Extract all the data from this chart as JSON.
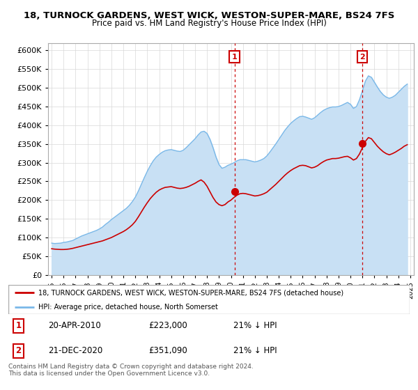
{
  "title": "18, TURNOCK GARDENS, WEST WICK, WESTON-SUPER-MARE, BS24 7FS",
  "subtitle": "Price paid vs. HM Land Registry's House Price Index (HPI)",
  "ylim": [
    0,
    620000
  ],
  "yticks": [
    0,
    50000,
    100000,
    150000,
    200000,
    250000,
    300000,
    350000,
    400000,
    450000,
    500000,
    550000,
    600000
  ],
  "xlim_start": 1994.7,
  "xlim_end": 2025.3,
  "hpi_color": "#7ab8e8",
  "hpi_fill_color": "#c8e0f4",
  "price_color": "#cc0000",
  "vline_color": "#cc0000",
  "marker1_year": 2010.3,
  "marker1_price": 223000,
  "marker1_label": "1",
  "marker1_date": "20-APR-2010",
  "marker1_pct": "21% ↓ HPI",
  "marker2_year": 2020.97,
  "marker2_price": 351090,
  "marker2_label": "2",
  "marker2_date": "21-DEC-2020",
  "marker2_pct": "21% ↓ HPI",
  "legend_red_label": "18, TURNOCK GARDENS, WEST WICK, WESTON-SUPER-MARE, BS24 7FS (detached house)",
  "legend_blue_label": "HPI: Average price, detached house, North Somerset",
  "footnote": "Contains HM Land Registry data © Crown copyright and database right 2024.\nThis data is licensed under the Open Government Licence v3.0.",
  "hpi_data_x": [
    1995.0,
    1995.25,
    1995.5,
    1995.75,
    1996.0,
    1996.25,
    1996.5,
    1996.75,
    1997.0,
    1997.25,
    1997.5,
    1997.75,
    1998.0,
    1998.25,
    1998.5,
    1998.75,
    1999.0,
    1999.25,
    1999.5,
    1999.75,
    2000.0,
    2000.25,
    2000.5,
    2000.75,
    2001.0,
    2001.25,
    2001.5,
    2001.75,
    2002.0,
    2002.25,
    2002.5,
    2002.75,
    2003.0,
    2003.25,
    2003.5,
    2003.75,
    2004.0,
    2004.25,
    2004.5,
    2004.75,
    2005.0,
    2005.25,
    2005.5,
    2005.75,
    2006.0,
    2006.25,
    2006.5,
    2006.75,
    2007.0,
    2007.25,
    2007.5,
    2007.75,
    2008.0,
    2008.25,
    2008.5,
    2008.75,
    2009.0,
    2009.25,
    2009.5,
    2009.75,
    2010.0,
    2010.25,
    2010.5,
    2010.75,
    2011.0,
    2011.25,
    2011.5,
    2011.75,
    2012.0,
    2012.25,
    2012.5,
    2012.75,
    2013.0,
    2013.25,
    2013.5,
    2013.75,
    2014.0,
    2014.25,
    2014.5,
    2014.75,
    2015.0,
    2015.25,
    2015.5,
    2015.75,
    2016.0,
    2016.25,
    2016.5,
    2016.75,
    2017.0,
    2017.25,
    2017.5,
    2017.75,
    2018.0,
    2018.25,
    2018.5,
    2018.75,
    2019.0,
    2019.25,
    2019.5,
    2019.75,
    2020.0,
    2020.25,
    2020.5,
    2020.75,
    2021.0,
    2021.25,
    2021.5,
    2021.75,
    2022.0,
    2022.25,
    2022.5,
    2022.75,
    2023.0,
    2023.25,
    2023.5,
    2023.75,
    2024.0,
    2024.25,
    2024.5,
    2024.75
  ],
  "hpi_data_y": [
    85000,
    84000,
    84500,
    85000,
    87000,
    88000,
    90000,
    92000,
    96000,
    100000,
    104000,
    107000,
    110000,
    113000,
    116000,
    119000,
    123000,
    128000,
    135000,
    141000,
    148000,
    154000,
    160000,
    166000,
    172000,
    178000,
    186000,
    196000,
    208000,
    224000,
    242000,
    260000,
    277000,
    292000,
    305000,
    315000,
    322000,
    328000,
    332000,
    334000,
    335000,
    333000,
    331000,
    330000,
    333000,
    340000,
    348000,
    356000,
    364000,
    374000,
    382000,
    384000,
    378000,
    362000,
    340000,
    315000,
    295000,
    285000,
    288000,
    293000,
    296000,
    300000,
    305000,
    308000,
    308000,
    308000,
    306000,
    304000,
    302000,
    304000,
    307000,
    311000,
    318000,
    328000,
    339000,
    350000,
    362000,
    374000,
    386000,
    396000,
    405000,
    412000,
    418000,
    423000,
    424000,
    422000,
    419000,
    416000,
    420000,
    427000,
    434000,
    440000,
    444000,
    447000,
    449000,
    449000,
    450000,
    453000,
    457000,
    461000,
    456000,
    445000,
    450000,
    468000,
    492000,
    518000,
    532000,
    528000,
    515000,
    502000,
    490000,
    481000,
    475000,
    472000,
    475000,
    480000,
    488000,
    496000,
    504000,
    510000
  ],
  "price_data_x": [
    1995.0,
    1995.25,
    1995.5,
    1995.75,
    1996.0,
    1996.25,
    1996.5,
    1996.75,
    1997.0,
    1997.25,
    1997.5,
    1997.75,
    1998.0,
    1998.25,
    1998.5,
    1998.75,
    1999.0,
    1999.25,
    1999.5,
    1999.75,
    2000.0,
    2000.25,
    2000.5,
    2000.75,
    2001.0,
    2001.25,
    2001.5,
    2001.75,
    2002.0,
    2002.25,
    2002.5,
    2002.75,
    2003.0,
    2003.25,
    2003.5,
    2003.75,
    2004.0,
    2004.25,
    2004.5,
    2004.75,
    2005.0,
    2005.25,
    2005.5,
    2005.75,
    2006.0,
    2006.25,
    2006.5,
    2006.75,
    2007.0,
    2007.25,
    2007.5,
    2007.75,
    2008.0,
    2008.25,
    2008.5,
    2008.75,
    2009.0,
    2009.25,
    2009.5,
    2009.75,
    2010.0,
    2010.25,
    2010.5,
    2010.75,
    2011.0,
    2011.25,
    2011.5,
    2011.75,
    2012.0,
    2012.25,
    2012.5,
    2012.75,
    2013.0,
    2013.25,
    2013.5,
    2013.75,
    2014.0,
    2014.25,
    2014.5,
    2014.75,
    2015.0,
    2015.25,
    2015.5,
    2015.75,
    2016.0,
    2016.25,
    2016.5,
    2016.75,
    2017.0,
    2017.25,
    2017.5,
    2017.75,
    2018.0,
    2018.25,
    2018.5,
    2018.75,
    2019.0,
    2019.25,
    2019.5,
    2019.75,
    2020.0,
    2020.25,
    2020.5,
    2020.75,
    2021.0,
    2021.25,
    2021.5,
    2021.75,
    2022.0,
    2022.25,
    2022.5,
    2022.75,
    2023.0,
    2023.25,
    2023.5,
    2023.75,
    2024.0,
    2024.25,
    2024.5,
    2024.75
  ],
  "price_data_y": [
    70000,
    69000,
    68500,
    68000,
    68000,
    68500,
    69500,
    71000,
    73000,
    75000,
    77000,
    79000,
    81000,
    83000,
    85000,
    87000,
    89000,
    91000,
    94000,
    97000,
    100000,
    104000,
    108000,
    112000,
    116000,
    121000,
    127000,
    134000,
    143000,
    155000,
    168000,
    181000,
    193000,
    204000,
    213000,
    221000,
    227000,
    231000,
    234000,
    235000,
    236000,
    234000,
    232000,
    231000,
    232000,
    234000,
    237000,
    241000,
    245000,
    250000,
    254000,
    248000,
    237000,
    222000,
    207000,
    195000,
    188000,
    185000,
    188000,
    195000,
    200000,
    207000,
    213000,
    217000,
    218000,
    217000,
    215000,
    213000,
    211000,
    212000,
    214000,
    217000,
    221000,
    228000,
    235000,
    242000,
    250000,
    258000,
    266000,
    273000,
    279000,
    284000,
    288000,
    292000,
    293000,
    292000,
    289000,
    286000,
    288000,
    292000,
    298000,
    303000,
    307000,
    309000,
    311000,
    311000,
    312000,
    314000,
    316000,
    317000,
    313000,
    307000,
    311000,
    323000,
    340000,
    357000,
    367000,
    364000,
    354000,
    344000,
    336000,
    329000,
    324000,
    321000,
    324000,
    328000,
    333000,
    338000,
    344000,
    348000
  ]
}
